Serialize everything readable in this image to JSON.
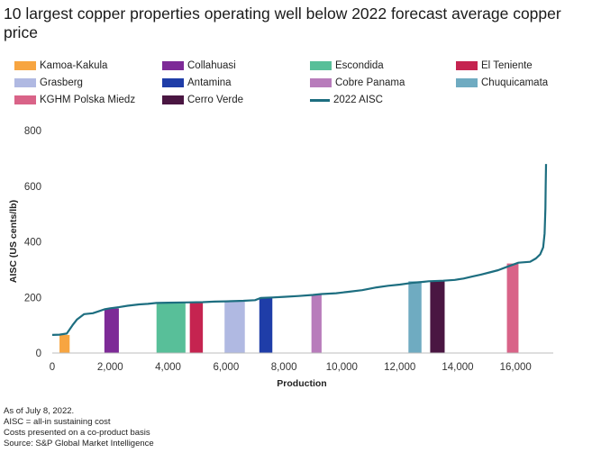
{
  "title": "10 largest copper properties operating well below 2022 forecast average copper price",
  "footnotes": [
    "As of July 8, 2022.",
    "AISC = all-in sustaining cost",
    "Costs presented on a co-product basis",
    "Source: S&P Global Market Intelligence"
  ],
  "colors": {
    "Kamoa-Kakula": "#f7a541",
    "Collahuasi": "#7d2a97",
    "Escondida": "#58bf99",
    "El Teniente": "#c52450",
    "Grasberg": "#b0b9e2",
    "Antamina": "#1f3da8",
    "Cobre Panama": "#b87cbb",
    "Chuquicamata": "#6fabc1",
    "KGHM Polska Miedz": "#d96388",
    "Cerro Verde": "#4a1642",
    "2022 AISC": "#1d6e80"
  },
  "chart_data": {
    "type": "area",
    "title": "10 largest copper properties operating well below 2022 forecast average copper price",
    "xlabel": "Production",
    "ylabel": "AISC (US cents/lb)",
    "xlim": [
      0,
      17300
    ],
    "ylim": [
      0,
      800
    ],
    "xticks": [
      0,
      2000,
      4000,
      6000,
      8000,
      10000,
      12000,
      14000,
      16000
    ],
    "xtick_labels": [
      "0",
      "2,000",
      "4,000",
      "6,000",
      "8,000",
      "10,000",
      "12,000",
      "14,000",
      "16,000"
    ],
    "yticks": [
      0,
      200,
      400,
      600,
      800
    ],
    "ytick_labels": [
      "0",
      "200",
      "400",
      "600",
      "800"
    ],
    "grid": false,
    "legend_position": "top",
    "series": [
      {
        "name": "Kamoa-Kakula",
        "type": "bar",
        "x_start": 250,
        "x_end": 600,
        "value": 65
      },
      {
        "name": "Collahuasi",
        "type": "bar",
        "x_start": 1800,
        "x_end": 2300,
        "value": 160
      },
      {
        "name": "Escondida",
        "type": "bar",
        "x_start": 3600,
        "x_end": 4600,
        "value": 180
      },
      {
        "name": "El Teniente",
        "type": "bar",
        "x_start": 4750,
        "x_end": 5200,
        "value": 182
      },
      {
        "name": "Grasberg",
        "type": "bar",
        "x_start": 5950,
        "x_end": 6650,
        "value": 188
      },
      {
        "name": "Antamina",
        "type": "bar",
        "x_start": 7150,
        "x_end": 7600,
        "value": 200
      },
      {
        "name": "Cobre Panama",
        "type": "bar",
        "x_start": 8950,
        "x_end": 9300,
        "value": 212
      },
      {
        "name": "Chuquicamata",
        "type": "bar",
        "x_start": 12300,
        "x_end": 12750,
        "value": 258
      },
      {
        "name": "Cerro Verde",
        "type": "bar",
        "x_start": 13050,
        "x_end": 13550,
        "value": 260
      },
      {
        "name": "KGHM Polska Miedz",
        "type": "bar",
        "x_start": 15700,
        "x_end": 16100,
        "value": 322
      },
      {
        "name": "2022 AISC",
        "type": "line",
        "x": [
          0,
          250,
          500,
          700,
          850,
          1100,
          1400,
          1600,
          1800,
          2000,
          2300,
          2600,
          3000,
          3300,
          3600,
          4000,
          4600,
          5200,
          5600,
          6000,
          6600,
          7000,
          7200,
          7600,
          8000,
          8500,
          9000,
          9300,
          9800,
          10200,
          10700,
          11200,
          11600,
          12000,
          12400,
          12800,
          13000,
          13500,
          13900,
          14200,
          14500,
          14800,
          15100,
          15400,
          15700,
          16100,
          16500,
          16700,
          16850,
          16950,
          17000,
          17030,
          17040,
          17050
        ],
        "y": [
          65,
          66,
          70,
          100,
          120,
          140,
          143,
          150,
          157,
          161,
          165,
          170,
          175,
          177,
          180,
          181,
          182,
          183,
          185,
          186,
          188,
          190,
          198,
          200,
          202,
          205,
          209,
          212,
          215,
          220,
          226,
          236,
          242,
          246,
          252,
          256,
          258,
          260,
          263,
          268,
          275,
          282,
          290,
          298,
          310,
          325,
          328,
          340,
          355,
          380,
          430,
          520,
          600,
          680
        ]
      }
    ]
  }
}
